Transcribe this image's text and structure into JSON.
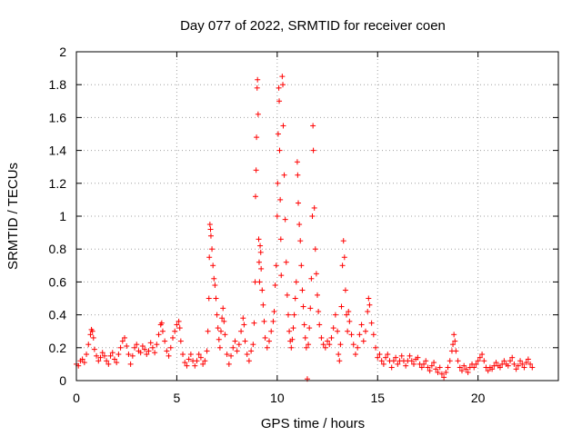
{
  "chart_data": {
    "type": "scatter",
    "title": "Day 077 of 2022, SRMTID for receiver coen",
    "xlabel": "GPS time / hours",
    "ylabel": "SRMTID / TECUs",
    "xlim": [
      0,
      24
    ],
    "ylim": [
      0,
      2
    ],
    "grid": true,
    "marker": "+",
    "color": "#ff0000",
    "x_ticks": [
      0,
      5,
      10,
      15,
      20
    ],
    "x_tick_labels": [
      "0",
      "5",
      "10",
      "15",
      "20"
    ],
    "y_ticks": [
      0,
      0.2,
      0.4,
      0.6,
      0.8,
      1,
      1.2,
      1.4,
      1.6,
      1.8,
      2
    ],
    "y_tick_labels": [
      "0",
      "0.2",
      "0.4",
      "0.6",
      "0.8",
      "1",
      "1.2",
      "1.4",
      "1.6",
      "1.8",
      "2"
    ],
    "series": [
      {
        "name": "SRMTID",
        "points": [
          [
            0.0,
            0.1
          ],
          [
            0.1,
            0.09
          ],
          [
            0.2,
            0.12
          ],
          [
            0.3,
            0.13
          ],
          [
            0.4,
            0.11
          ],
          [
            0.5,
            0.16
          ],
          [
            0.6,
            0.22
          ],
          [
            0.7,
            0.28
          ],
          [
            0.75,
            0.31
          ],
          [
            0.8,
            0.3
          ],
          [
            0.85,
            0.26
          ],
          [
            0.9,
            0.19
          ],
          [
            1.0,
            0.15
          ],
          [
            1.1,
            0.12
          ],
          [
            1.2,
            0.14
          ],
          [
            1.3,
            0.17
          ],
          [
            1.4,
            0.15
          ],
          [
            1.5,
            0.12
          ],
          [
            1.6,
            0.1
          ],
          [
            1.7,
            0.15
          ],
          [
            1.8,
            0.17
          ],
          [
            1.9,
            0.13
          ],
          [
            2.0,
            0.11
          ],
          [
            2.1,
            0.16
          ],
          [
            2.2,
            0.2
          ],
          [
            2.3,
            0.24
          ],
          [
            2.4,
            0.26
          ],
          [
            2.5,
            0.21
          ],
          [
            2.6,
            0.16
          ],
          [
            2.7,
            0.1
          ],
          [
            2.8,
            0.15
          ],
          [
            2.9,
            0.2
          ],
          [
            3.0,
            0.22
          ],
          [
            3.1,
            0.18
          ],
          [
            3.2,
            0.17
          ],
          [
            3.3,
            0.21
          ],
          [
            3.4,
            0.19
          ],
          [
            3.5,
            0.16
          ],
          [
            3.6,
            0.18
          ],
          [
            3.7,
            0.23
          ],
          [
            3.8,
            0.2
          ],
          [
            3.9,
            0.17
          ],
          [
            4.0,
            0.22
          ],
          [
            4.1,
            0.28
          ],
          [
            4.2,
            0.34
          ],
          [
            4.25,
            0.35
          ],
          [
            4.3,
            0.3
          ],
          [
            4.4,
            0.24
          ],
          [
            4.5,
            0.18
          ],
          [
            4.6,
            0.15
          ],
          [
            4.7,
            0.2
          ],
          [
            4.8,
            0.26
          ],
          [
            4.9,
            0.3
          ],
          [
            5.0,
            0.34
          ],
          [
            5.1,
            0.36
          ],
          [
            5.15,
            0.32
          ],
          [
            5.2,
            0.24
          ],
          [
            5.3,
            0.16
          ],
          [
            5.4,
            0.11
          ],
          [
            5.5,
            0.09
          ],
          [
            5.6,
            0.13
          ],
          [
            5.7,
            0.16
          ],
          [
            5.8,
            0.12
          ],
          [
            5.9,
            0.09
          ],
          [
            6.0,
            0.12
          ],
          [
            6.1,
            0.16
          ],
          [
            6.2,
            0.14
          ],
          [
            6.3,
            0.1
          ],
          [
            6.4,
            0.12
          ],
          [
            6.5,
            0.18
          ],
          [
            6.55,
            0.3
          ],
          [
            6.6,
            0.5
          ],
          [
            6.62,
            0.75
          ],
          [
            6.65,
            0.95
          ],
          [
            6.68,
            0.92
          ],
          [
            6.7,
            0.88
          ],
          [
            6.75,
            0.8
          ],
          [
            6.8,
            0.7
          ],
          [
            6.85,
            0.62
          ],
          [
            6.9,
            0.58
          ],
          [
            6.95,
            0.5
          ],
          [
            7.0,
            0.4
          ],
          [
            7.05,
            0.32
          ],
          [
            7.1,
            0.25
          ],
          [
            7.15,
            0.2
          ],
          [
            7.2,
            0.3
          ],
          [
            7.25,
            0.38
          ],
          [
            7.3,
            0.44
          ],
          [
            7.35,
            0.36
          ],
          [
            7.4,
            0.28
          ],
          [
            7.5,
            0.16
          ],
          [
            7.6,
            0.1
          ],
          [
            7.7,
            0.15
          ],
          [
            7.8,
            0.2
          ],
          [
            7.9,
            0.24
          ],
          [
            8.0,
            0.18
          ],
          [
            8.1,
            0.22
          ],
          [
            8.2,
            0.3
          ],
          [
            8.3,
            0.38
          ],
          [
            8.35,
            0.34
          ],
          [
            8.4,
            0.24
          ],
          [
            8.5,
            0.16
          ],
          [
            8.6,
            0.12
          ],
          [
            8.7,
            0.18
          ],
          [
            8.8,
            0.22
          ],
          [
            8.85,
            0.35
          ],
          [
            8.9,
            0.6
          ],
          [
            8.92,
            1.12
          ],
          [
            8.95,
            1.28
          ],
          [
            8.97,
            1.48
          ],
          [
            9.0,
            1.78
          ],
          [
            9.02,
            1.83
          ],
          [
            9.05,
            1.62
          ],
          [
            9.08,
            0.86
          ],
          [
            9.1,
            0.72
          ],
          [
            9.12,
            0.6
          ],
          [
            9.15,
            0.82
          ],
          [
            9.18,
            0.78
          ],
          [
            9.2,
            0.68
          ],
          [
            9.25,
            0.55
          ],
          [
            9.3,
            0.46
          ],
          [
            9.35,
            0.36
          ],
          [
            9.4,
            0.26
          ],
          [
            9.5,
            0.2
          ],
          [
            9.6,
            0.24
          ],
          [
            9.7,
            0.3
          ],
          [
            9.8,
            0.36
          ],
          [
            9.85,
            0.42
          ],
          [
            9.9,
            0.58
          ],
          [
            9.95,
            0.7
          ],
          [
            10.0,
            1.0
          ],
          [
            10.02,
            1.2
          ],
          [
            10.05,
            1.5
          ],
          [
            10.08,
            1.78
          ],
          [
            10.1,
            1.7
          ],
          [
            10.12,
            1.4
          ],
          [
            10.15,
            1.1
          ],
          [
            10.18,
            0.86
          ],
          [
            10.2,
            0.64
          ],
          [
            10.25,
            1.85
          ],
          [
            10.28,
            1.8
          ],
          [
            10.3,
            1.55
          ],
          [
            10.35,
            1.25
          ],
          [
            10.4,
            0.98
          ],
          [
            10.45,
            0.72
          ],
          [
            10.5,
            0.52
          ],
          [
            10.55,
            0.4
          ],
          [
            10.6,
            0.3
          ],
          [
            10.65,
            0.24
          ],
          [
            10.7,
            0.2
          ],
          [
            10.75,
            0.25
          ],
          [
            10.8,
            0.32
          ],
          [
            10.85,
            0.4
          ],
          [
            10.9,
            0.5
          ],
          [
            10.95,
            0.6
          ],
          [
            11.0,
            1.33
          ],
          [
            11.02,
            1.25
          ],
          [
            11.05,
            1.08
          ],
          [
            11.1,
            0.95
          ],
          [
            11.15,
            0.85
          ],
          [
            11.2,
            0.7
          ],
          [
            11.25,
            0.55
          ],
          [
            11.3,
            0.45
          ],
          [
            11.35,
            0.34
          ],
          [
            11.4,
            0.26
          ],
          [
            11.45,
            0.2
          ],
          [
            11.5,
            0.01
          ],
          [
            11.55,
            0.22
          ],
          [
            11.6,
            0.32
          ],
          [
            11.65,
            0.44
          ],
          [
            11.7,
            0.62
          ],
          [
            11.75,
            1.0
          ],
          [
            11.78,
            1.55
          ],
          [
            11.8,
            1.4
          ],
          [
            11.85,
            1.05
          ],
          [
            11.9,
            0.8
          ],
          [
            11.95,
            0.65
          ],
          [
            12.0,
            0.52
          ],
          [
            12.05,
            0.42
          ],
          [
            12.1,
            0.34
          ],
          [
            12.2,
            0.26
          ],
          [
            12.3,
            0.22
          ],
          [
            12.4,
            0.2
          ],
          [
            12.5,
            0.24
          ],
          [
            12.6,
            0.22
          ],
          [
            12.7,
            0.26
          ],
          [
            12.8,
            0.32
          ],
          [
            12.9,
            0.4
          ],
          [
            13.0,
            0.3
          ],
          [
            13.05,
            0.16
          ],
          [
            13.1,
            0.12
          ],
          [
            13.15,
            0.22
          ],
          [
            13.2,
            0.45
          ],
          [
            13.25,
            0.7
          ],
          [
            13.3,
            0.85
          ],
          [
            13.35,
            0.75
          ],
          [
            13.4,
            0.55
          ],
          [
            13.45,
            0.4
          ],
          [
            13.5,
            0.3
          ],
          [
            13.55,
            0.42
          ],
          [
            13.6,
            0.36
          ],
          [
            13.7,
            0.28
          ],
          [
            13.8,
            0.22
          ],
          [
            13.9,
            0.16
          ],
          [
            14.0,
            0.2
          ],
          [
            14.1,
            0.28
          ],
          [
            14.2,
            0.34
          ],
          [
            14.3,
            0.24
          ],
          [
            14.4,
            0.3
          ],
          [
            14.5,
            0.42
          ],
          [
            14.55,
            0.5
          ],
          [
            14.6,
            0.46
          ],
          [
            14.7,
            0.35
          ],
          [
            14.8,
            0.28
          ],
          [
            14.9,
            0.2
          ],
          [
            15.0,
            0.14
          ],
          [
            15.1,
            0.16
          ],
          [
            15.2,
            0.12
          ],
          [
            15.3,
            0.1
          ],
          [
            15.4,
            0.14
          ],
          [
            15.5,
            0.16
          ],
          [
            15.6,
            0.12
          ],
          [
            15.7,
            0.08
          ],
          [
            15.8,
            0.12
          ],
          [
            15.9,
            0.14
          ],
          [
            16.0,
            0.1
          ],
          [
            16.1,
            0.12
          ],
          [
            16.2,
            0.15
          ],
          [
            16.3,
            0.12
          ],
          [
            16.4,
            0.09
          ],
          [
            16.5,
            0.12
          ],
          [
            16.6,
            0.15
          ],
          [
            16.7,
            0.12
          ],
          [
            16.8,
            0.1
          ],
          [
            16.9,
            0.13
          ],
          [
            17.0,
            0.14
          ],
          [
            17.1,
            0.1
          ],
          [
            17.2,
            0.08
          ],
          [
            17.3,
            0.1
          ],
          [
            17.4,
            0.12
          ],
          [
            17.5,
            0.08
          ],
          [
            17.6,
            0.06
          ],
          [
            17.7,
            0.09
          ],
          [
            17.8,
            0.11
          ],
          [
            17.9,
            0.07
          ],
          [
            18.0,
            0.05
          ],
          [
            18.1,
            0.08
          ],
          [
            18.2,
            0.04
          ],
          [
            18.3,
            0.02
          ],
          [
            18.4,
            0.05
          ],
          [
            18.5,
            0.08
          ],
          [
            18.6,
            0.12
          ],
          [
            18.7,
            0.18
          ],
          [
            18.75,
            0.22
          ],
          [
            18.8,
            0.28
          ],
          [
            18.85,
            0.24
          ],
          [
            18.9,
            0.18
          ],
          [
            19.0,
            0.12
          ],
          [
            19.1,
            0.08
          ],
          [
            19.2,
            0.06
          ],
          [
            19.3,
            0.09
          ],
          [
            19.4,
            0.07
          ],
          [
            19.5,
            0.05
          ],
          [
            19.6,
            0.08
          ],
          [
            19.7,
            0.1
          ],
          [
            19.8,
            0.08
          ],
          [
            19.9,
            0.1
          ],
          [
            20.0,
            0.12
          ],
          [
            20.1,
            0.14
          ],
          [
            20.2,
            0.16
          ],
          [
            20.3,
            0.12
          ],
          [
            20.4,
            0.08
          ],
          [
            20.5,
            0.06
          ],
          [
            20.6,
            0.08
          ],
          [
            20.7,
            0.07
          ],
          [
            20.8,
            0.09
          ],
          [
            20.9,
            0.11
          ],
          [
            21.0,
            0.09
          ],
          [
            21.1,
            0.08
          ],
          [
            21.2,
            0.1
          ],
          [
            21.3,
            0.12
          ],
          [
            21.4,
            0.1
          ],
          [
            21.5,
            0.09
          ],
          [
            21.6,
            0.12
          ],
          [
            21.7,
            0.14
          ],
          [
            21.8,
            0.1
          ],
          [
            21.9,
            0.07
          ],
          [
            22.0,
            0.09
          ],
          [
            22.1,
            0.12
          ],
          [
            22.2,
            0.1
          ],
          [
            22.3,
            0.08
          ],
          [
            22.4,
            0.11
          ],
          [
            22.5,
            0.13
          ],
          [
            22.6,
            0.1
          ],
          [
            22.7,
            0.08
          ]
        ]
      }
    ]
  }
}
